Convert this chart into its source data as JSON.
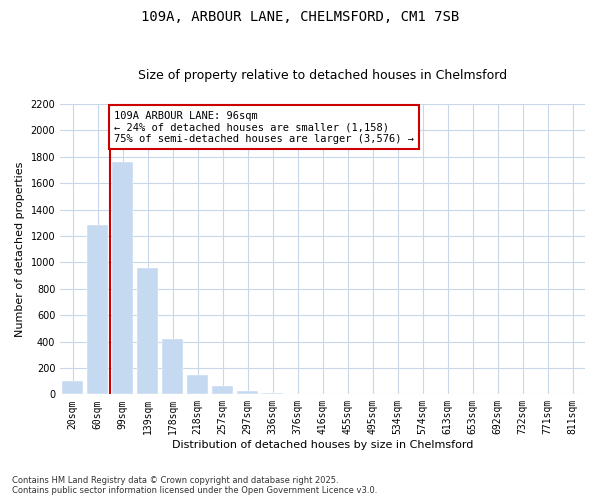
{
  "title": "109A, ARBOUR LANE, CHELMSFORD, CM1 7SB",
  "subtitle": "Size of property relative to detached houses in Chelmsford",
  "xlabel": "Distribution of detached houses by size in Chelmsford",
  "ylabel": "Number of detached properties",
  "categories": [
    "20sqm",
    "60sqm",
    "99sqm",
    "139sqm",
    "178sqm",
    "218sqm",
    "257sqm",
    "297sqm",
    "336sqm",
    "376sqm",
    "416sqm",
    "455sqm",
    "495sqm",
    "534sqm",
    "574sqm",
    "613sqm",
    "653sqm",
    "692sqm",
    "732sqm",
    "771sqm",
    "811sqm"
  ],
  "values": [
    100,
    1280,
    1760,
    960,
    420,
    150,
    60,
    25,
    10,
    5,
    3,
    2,
    1,
    1,
    1,
    0,
    0,
    0,
    0,
    0,
    0
  ],
  "bar_color": "#c5d9f0",
  "vline_x": 1.5,
  "vline_color": "#cc0000",
  "annotation_text": "109A ARBOUR LANE: 96sqm\n← 24% of detached houses are smaller (1,158)\n75% of semi-detached houses are larger (3,576) →",
  "annotation_box_color": "#cc0000",
  "ylim": [
    0,
    2200
  ],
  "yticks": [
    0,
    200,
    400,
    600,
    800,
    1000,
    1200,
    1400,
    1600,
    1800,
    2000,
    2200
  ],
  "footnote": "Contains HM Land Registry data © Crown copyright and database right 2025.\nContains public sector information licensed under the Open Government Licence v3.0.",
  "bg_color": "#ffffff",
  "grid_color": "#c8d8e8",
  "title_fontsize": 10,
  "subtitle_fontsize": 9,
  "axis_label_fontsize": 8,
  "tick_fontsize": 7,
  "annotation_fontsize": 7.5,
  "footnote_fontsize": 6
}
